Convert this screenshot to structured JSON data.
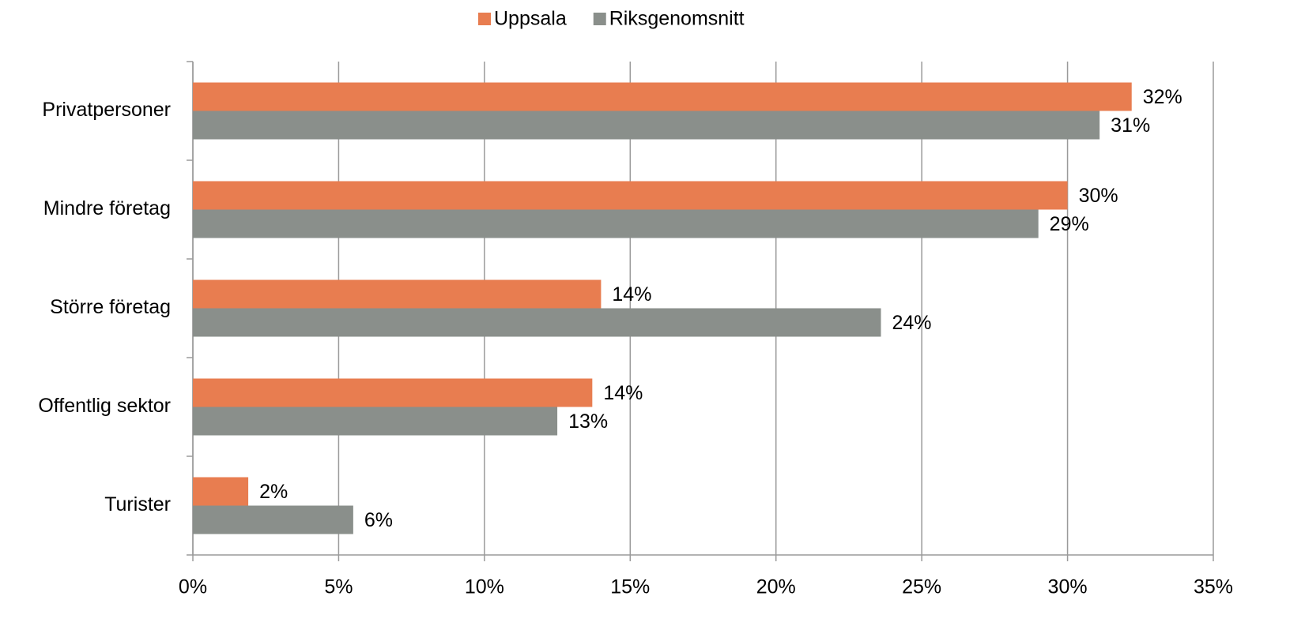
{
  "chart_data": {
    "type": "hbar",
    "categories": [
      "Privatpersoner",
      "Mindre företag",
      "Större företag",
      "Offentlig sektor",
      "Turister"
    ],
    "series": [
      {
        "name": "Uppsala",
        "color": "#e87d50",
        "values": [
          32.2,
          30.0,
          14.0,
          13.7,
          1.9
        ],
        "value_labels": [
          "32%",
          "30%",
          "14%",
          "14%",
          "2%"
        ]
      },
      {
        "name": "Riksgenomsnitt",
        "color": "#8a8f8b",
        "values": [
          31.1,
          29.0,
          23.6,
          12.5,
          5.5
        ],
        "value_labels": [
          "31%",
          "29%",
          "24%",
          "13%",
          "6%"
        ]
      }
    ],
    "xlim": [
      0,
      35
    ],
    "xticks": [
      {
        "value": 0,
        "label": "0%"
      },
      {
        "value": 5,
        "label": "5%"
      },
      {
        "value": 10,
        "label": "10%"
      },
      {
        "value": 15,
        "label": "15%"
      },
      {
        "value": 20,
        "label": "20%"
      },
      {
        "value": 25,
        "label": "25%"
      },
      {
        "value": 30,
        "label": "30%"
      },
      {
        "value": 35,
        "label": "35%"
      }
    ],
    "grid": true,
    "legend": "top"
  }
}
